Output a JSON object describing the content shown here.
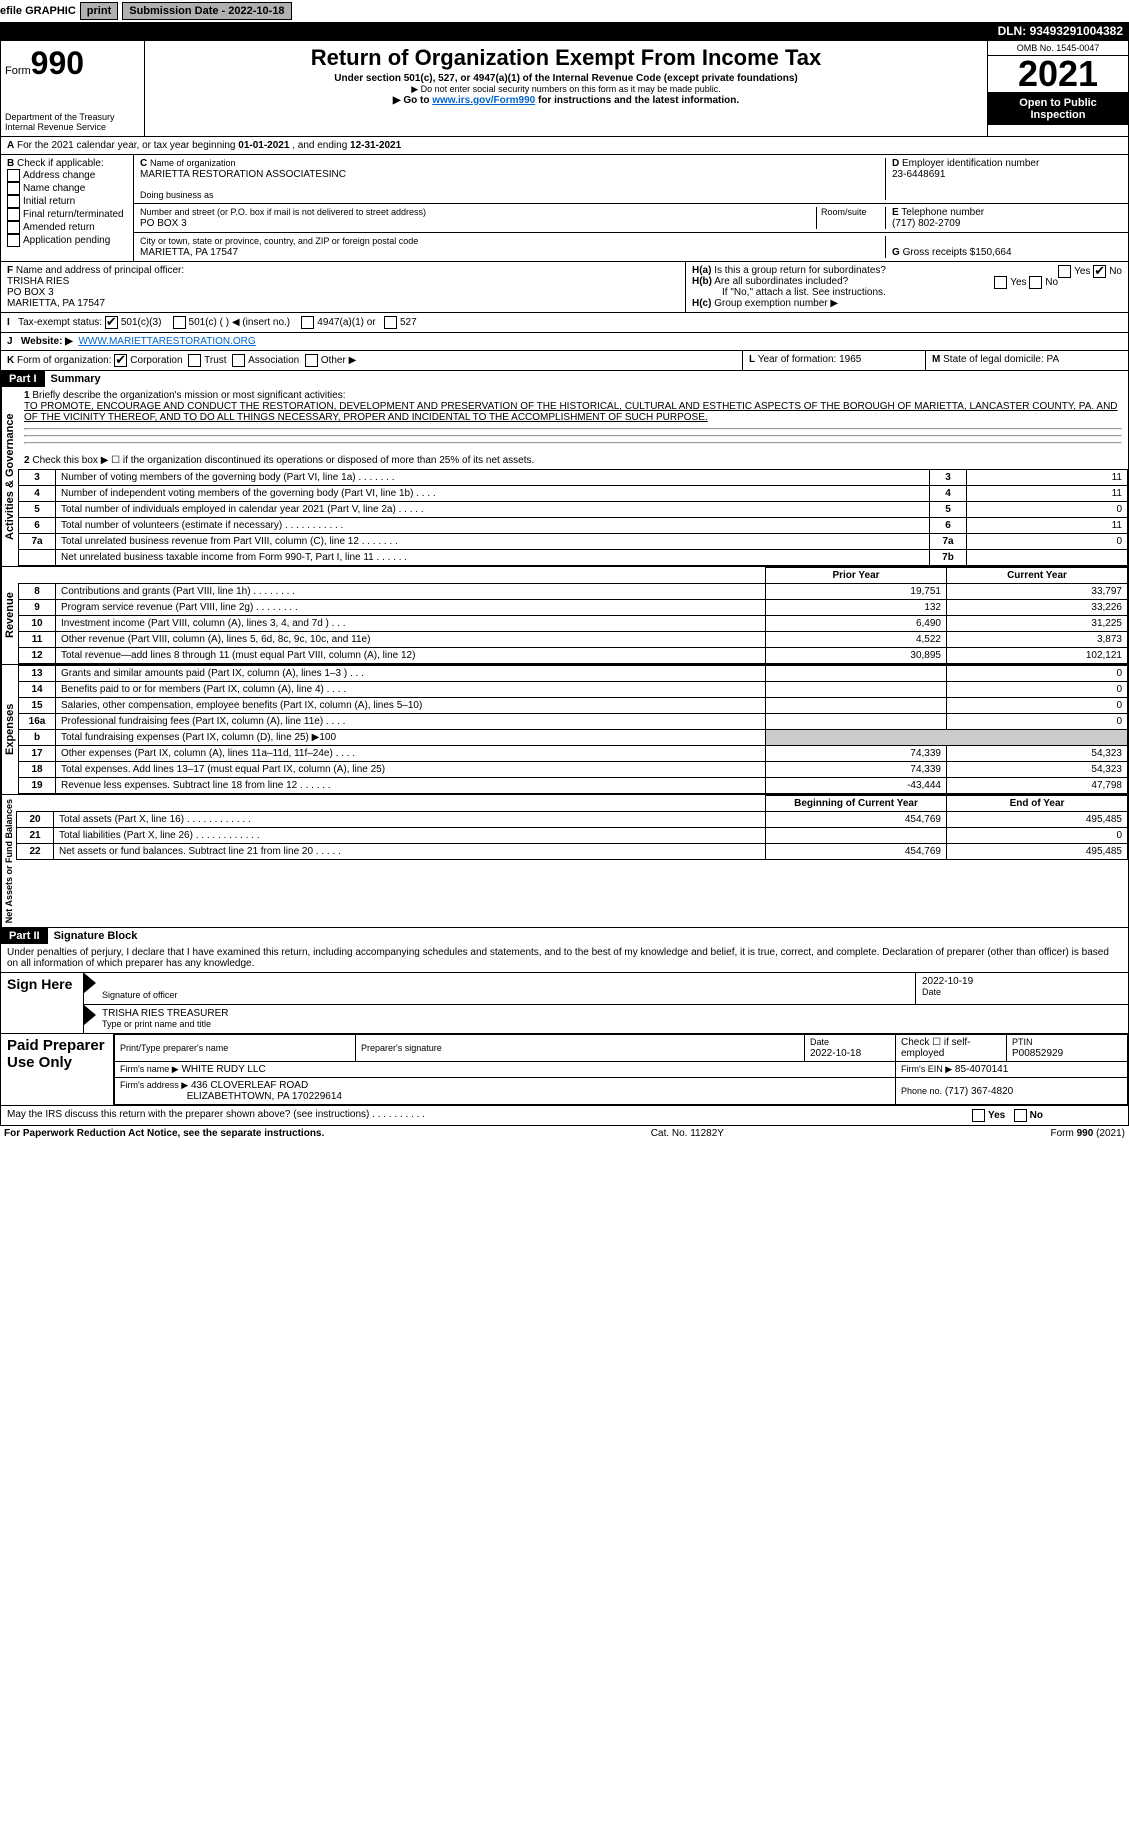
{
  "topbar": {
    "efile": "efile GRAPHIC",
    "print": "print",
    "sub_label": "Submission Date - ",
    "sub_date": "2022-10-18",
    "dln_label": "DLN: ",
    "dln": "93493291004382"
  },
  "header": {
    "form_prefix": "Form",
    "form_no": "990",
    "dept": "Department of the Treasury",
    "irs": "Internal Revenue Service",
    "title": "Return of Organization Exempt From Income Tax",
    "sub1": "Under section 501(c), 527, or 4947(a)(1) of the Internal Revenue Code (except private foundations)",
    "sub2": "▶ Do not enter social security numbers on this form as it may be made public.",
    "sub3_pre": "▶ Go to ",
    "sub3_link": "www.irs.gov/Form990",
    "sub3_post": " for instructions and the latest information.",
    "omb": "OMB No. 1545-0047",
    "year": "2021",
    "open": "Open to Public Inspection"
  },
  "periodA": {
    "text_pre": "For the 2021 calendar year, or tax year beginning ",
    "begin": "01-01-2021",
    "text_mid": " , and ending ",
    "end": "12-31-2021"
  },
  "B": {
    "label": "Check if applicable:",
    "items": [
      "Address change",
      "Name change",
      "Initial return",
      "Final return/terminated",
      "Amended return",
      "Application pending"
    ]
  },
  "C": {
    "name_label": "Name of organization",
    "name": "MARIETTA RESTORATION ASSOCIATESINC",
    "dba_label": "Doing business as",
    "dba": "",
    "street_label": "Number and street (or P.O. box if mail is not delivered to street address)",
    "room_label": "Room/suite",
    "street": "PO BOX 3",
    "city_label": "City or town, state or province, country, and ZIP or foreign postal code",
    "city": "MARIETTA, PA  17547"
  },
  "D": {
    "label": "Employer identification number",
    "val": "23-6448691"
  },
  "E": {
    "label": "Telephone number",
    "val": "(717) 802-2709"
  },
  "G": {
    "label": "Gross receipts $",
    "val": "150,664"
  },
  "F": {
    "label": "Name and address of principal officer:",
    "name": "TRISHA RIES",
    "addr1": "PO BOX 3",
    "addr2": "MARIETTA, PA  17547"
  },
  "H": {
    "a": "Is this a group return for subordinates?",
    "b": "Are all subordinates included?",
    "note": "If \"No,\" attach a list. See instructions.",
    "c": "Group exemption number ▶",
    "yes": "Yes",
    "no": "No"
  },
  "I": {
    "label": "Tax-exempt status:",
    "opts": [
      "501(c)(3)",
      "501(c) (   ) ◀ (insert no.)",
      "4947(a)(1) or",
      "527"
    ]
  },
  "J": {
    "label": "Website: ▶",
    "val": "WWW.MARIETTARESTORATION.ORG"
  },
  "K": {
    "label": "Form of organization:",
    "opts": [
      "Corporation",
      "Trust",
      "Association",
      "Other ▶"
    ]
  },
  "L": {
    "label": "Year of formation:",
    "val": "1965"
  },
  "M": {
    "label": "State of legal domicile:",
    "val": "PA"
  },
  "part1": {
    "tab": "Part I",
    "title": "Summary",
    "q1_label": "Briefly describe the organization's mission or most significant activities:",
    "q1_text": "TO PROMOTE, ENCOURAGE AND CONDUCT THE RESTORATION, DEVELOPMENT AND PRESERVATION OF THE HISTORICAL, CULTURAL AND ESTHETIC ASPECTS OF THE BOROUGH OF MARIETTA, LANCASTER COUNTY, PA. AND OF THE VICINITY THEREOF, AND TO DO ALL THINGS NECESSARY, PROPER AND INCIDENTAL TO THE ACCOMPLISHMENT OF SUCH PURPOSE.",
    "sideA": "Activities & Governance",
    "sideR": "Revenue",
    "sideE": "Expenses",
    "sideN": "Net Assets or Fund Balances",
    "q2": "Check this box ▶ ☐ if the organization discontinued its operations or disposed of more than 25% of its net assets.",
    "rowsA": [
      {
        "n": "3",
        "t": "Number of voting members of the governing body (Part VI, line 1a)   .    .    .    .    .    .    .",
        "b": "3",
        "v": "11"
      },
      {
        "n": "4",
        "t": "Number of independent voting members of the governing body (Part VI, line 1b)   .    .    .    .",
        "b": "4",
        "v": "11"
      },
      {
        "n": "5",
        "t": "Total number of individuals employed in calendar year 2021 (Part V, line 2a)   .    .    .    .    .",
        "b": "5",
        "v": "0"
      },
      {
        "n": "6",
        "t": "Total number of volunteers (estimate if necessary)   .    .    .    .    .    .    .    .    .    .    .",
        "b": "6",
        "v": "11"
      },
      {
        "n": "7a",
        "t": "Total unrelated business revenue from Part VIII, column (C), line 12   .    .    .    .    .    .    .",
        "b": "7a",
        "v": "0"
      },
      {
        "n": "",
        "t": "Net unrelated business taxable income from Form 990-T, Part I, line 11   .    .    .    .    .    .",
        "b": "7b",
        "v": ""
      }
    ],
    "hdr_prior": "Prior Year",
    "hdr_curr": "Current Year",
    "rowsR": [
      {
        "n": "8",
        "t": "Contributions and grants (Part VIII, line 1h)   .    .    .    .    .    .    .    .",
        "p": "19,751",
        "c": "33,797"
      },
      {
        "n": "9",
        "t": "Program service revenue (Part VIII, line 2g)   .    .    .    .    .    .    .    .",
        "p": "132",
        "c": "33,226"
      },
      {
        "n": "10",
        "t": "Investment income (Part VIII, column (A), lines 3, 4, and 7d )   .    .    .",
        "p": "6,490",
        "c": "31,225"
      },
      {
        "n": "11",
        "t": "Other revenue (Part VIII, column (A), lines 5, 6d, 8c, 9c, 10c, and 11e)",
        "p": "4,522",
        "c": "3,873"
      },
      {
        "n": "12",
        "t": "Total revenue—add lines 8 through 11 (must equal Part VIII, column (A), line 12)",
        "p": "30,895",
        "c": "102,121"
      }
    ],
    "rowsE": [
      {
        "n": "13",
        "t": "Grants and similar amounts paid (Part IX, column (A), lines 1–3 )   .    .    .",
        "p": "",
        "c": "0"
      },
      {
        "n": "14",
        "t": "Benefits paid to or for members (Part IX, column (A), line 4)   .    .    .    .",
        "p": "",
        "c": "0"
      },
      {
        "n": "15",
        "t": "Salaries, other compensation, employee benefits (Part IX, column (A), lines 5–10)",
        "p": "",
        "c": "0"
      },
      {
        "n": "16a",
        "t": "Professional fundraising fees (Part IX, column (A), line 11e)   .    .    .    .",
        "p": "",
        "c": "0"
      },
      {
        "n": "b",
        "t": "Total fundraising expenses (Part IX, column (D), line 25) ▶100",
        "p": "—",
        "c": "—"
      },
      {
        "n": "17",
        "t": "Other expenses (Part IX, column (A), lines 11a–11d, 11f–24e)   .    .    .    .",
        "p": "74,339",
        "c": "54,323"
      },
      {
        "n": "18",
        "t": "Total expenses. Add lines 13–17 (must equal Part IX, column (A), line 25)",
        "p": "74,339",
        "c": "54,323"
      },
      {
        "n": "19",
        "t": "Revenue less expenses. Subtract line 18 from line 12   .    .    .    .    .    .",
        "p": "-43,444",
        "c": "47,798"
      }
    ],
    "hdr_beg": "Beginning of Current Year",
    "hdr_end": "End of Year",
    "rowsN": [
      {
        "n": "20",
        "t": "Total assets (Part X, line 16)   .    .    .    .    .    .    .    .    .    .    .    .",
        "p": "454,769",
        "c": "495,485"
      },
      {
        "n": "21",
        "t": "Total liabilities (Part X, line 26)   .    .    .    .    .    .    .    .    .    .    .    .",
        "p": "",
        "c": "0"
      },
      {
        "n": "22",
        "t": "Net assets or fund balances. Subtract line 21 from line 20   .    .    .    .    .",
        "p": "454,769",
        "c": "495,485"
      }
    ]
  },
  "part2": {
    "tab": "Part II",
    "title": "Signature Block",
    "decl": "Under penalties of perjury, I declare that I have examined this return, including accompanying schedules and statements, and to the best of my knowledge and belief, it is true, correct, and complete. Declaration of preparer (other than officer) is based on all information of which preparer has any knowledge.",
    "sign_here": "Sign Here",
    "sig_officer": "Signature of officer",
    "date": "Date",
    "sig_date": "2022-10-19",
    "name_title": "TRISHA RIES  TREASURER",
    "type_name": "Type or print name and title",
    "paid": "Paid Preparer Use Only",
    "p_name_lbl": "Print/Type preparer's name",
    "p_sig_lbl": "Preparer's signature",
    "p_date_lbl": "Date",
    "p_date": "2022-10-18",
    "p_check_lbl": "Check ☐ if self-employed",
    "ptin_lbl": "PTIN",
    "ptin": "P00852929",
    "firm_name_lbl": "Firm's name    ▶",
    "firm_name": "WHITE RUDY LLC",
    "firm_ein_lbl": "Firm's EIN ▶",
    "firm_ein": "85-4070141",
    "firm_addr_lbl": "Firm's address ▶",
    "firm_addr1": "436 CLOVERLEAF ROAD",
    "firm_addr2": "ELIZABETHTOWN, PA  170229614",
    "phone_lbl": "Phone no.",
    "phone": "(717) 367-4820",
    "may_irs": "May the IRS discuss this return with the preparer shown above? (see instructions)   .    .    .    .    .    .    .    .    .    ."
  },
  "footer": {
    "l": "For Paperwork Reduction Act Notice, see the separate instructions.",
    "m": "Cat. No. 11282Y",
    "r": "Form 990 (2021)"
  }
}
